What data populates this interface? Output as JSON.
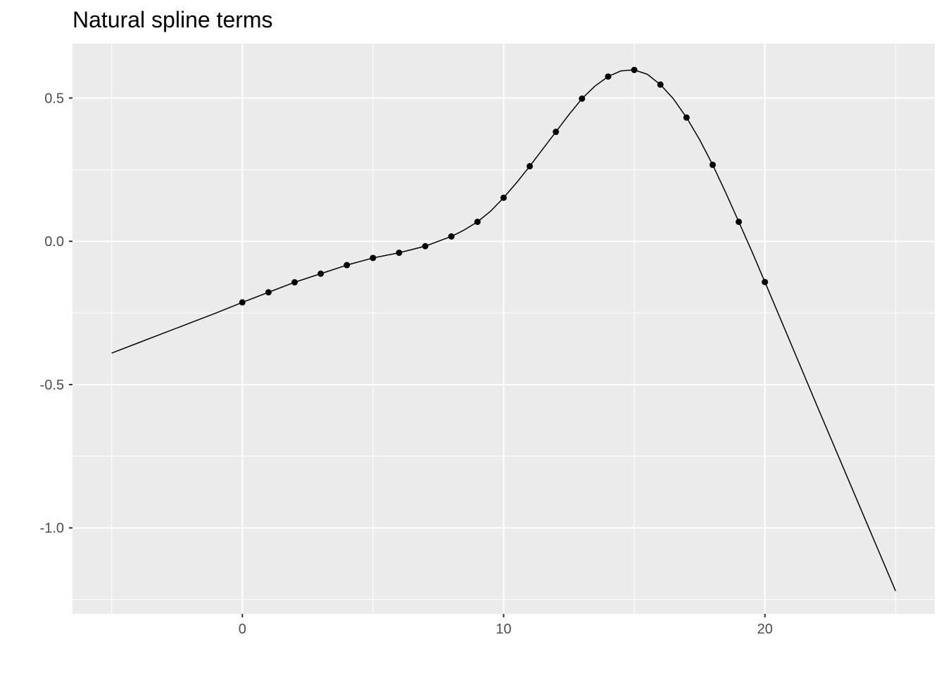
{
  "chart_data": {
    "type": "line",
    "title": "Natural spline terms",
    "xlabel": "",
    "ylabel": "",
    "xlim": [
      -6.5,
      26.5
    ],
    "ylim": [
      -1.3,
      0.69
    ],
    "x_ticks": [
      0,
      10,
      20
    ],
    "x_tick_labels": [
      "0",
      "10",
      "20"
    ],
    "y_ticks": [
      0.5,
      0.0,
      -0.5,
      -1.0
    ],
    "y_tick_labels": [
      "0.5",
      "0.0",
      "-0.5",
      "-1.0"
    ],
    "x_minor_ticks": [
      -5,
      5,
      15,
      25
    ],
    "y_minor_ticks": [
      0.25,
      -0.25,
      -0.75,
      -1.25
    ],
    "grid": true,
    "background": "#ebebeb",
    "grid_color": "#ffffff",
    "series": [
      {
        "kind": "line",
        "color": "#000000",
        "x": [
          -5,
          -4,
          -3,
          -2,
          -1,
          0,
          1,
          2,
          3,
          4,
          5,
          6,
          7,
          7.5,
          8,
          8.5,
          9,
          9.5,
          10,
          10.5,
          11,
          11.5,
          12,
          12.5,
          13,
          13.5,
          14,
          14.5,
          15,
          15.5,
          16,
          16.5,
          17,
          17.5,
          18,
          18.5,
          19,
          19.5,
          20,
          21,
          22,
          23,
          24,
          25
        ],
        "y": [
          -0.39,
          -0.355,
          -0.32,
          -0.285,
          -0.25,
          -0.213,
          -0.178,
          -0.143,
          -0.113,
          -0.083,
          -0.058,
          -0.04,
          -0.017,
          0.0,
          0.017,
          0.04,
          0.068,
          0.105,
          0.152,
          0.205,
          0.262,
          0.322,
          0.382,
          0.442,
          0.498,
          0.542,
          0.575,
          0.595,
          0.598,
          0.583,
          0.547,
          0.497,
          0.432,
          0.355,
          0.267,
          0.17,
          0.068,
          -0.035,
          -0.142,
          -0.358,
          -0.575,
          -0.79,
          -1.005,
          -1.22
        ]
      },
      {
        "kind": "points",
        "color": "#000000",
        "x": [
          0,
          1,
          2,
          3,
          4,
          5,
          6,
          7,
          8,
          9,
          10,
          11,
          12,
          13,
          14,
          15,
          16,
          17,
          18,
          19,
          20
        ],
        "y": [
          -0.213,
          -0.178,
          -0.143,
          -0.113,
          -0.083,
          -0.058,
          -0.04,
          -0.017,
          0.017,
          0.068,
          0.152,
          0.262,
          0.382,
          0.498,
          0.575,
          0.598,
          0.547,
          0.432,
          0.267,
          0.068,
          -0.142
        ]
      }
    ]
  }
}
